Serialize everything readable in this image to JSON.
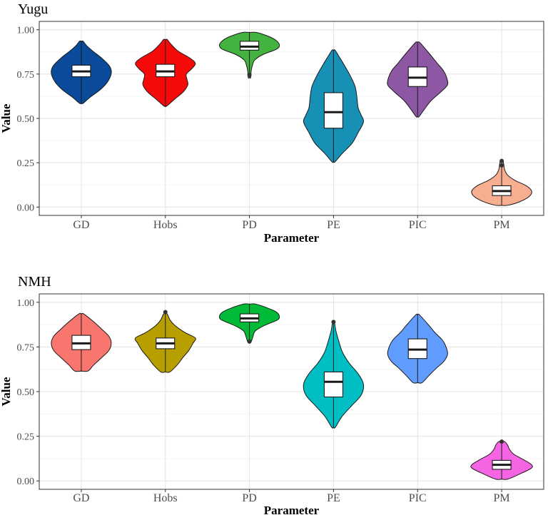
{
  "chart_data": [
    {
      "type": "violin",
      "title": "Yugu",
      "xlabel": "Parameter",
      "ylabel": "Value",
      "ylim": [
        0,
        1
      ],
      "yticks": [
        "0.00",
        "0.25",
        "0.50",
        "0.75",
        "1.00"
      ],
      "grid": true,
      "series": [
        {
          "name": "GD",
          "color": "#0a4a9a",
          "min": 0.585,
          "max": 0.935,
          "q1": 0.735,
          "median": 0.765,
          "q3": 0.8,
          "outliers": [],
          "profile": [
            [
              0.585,
              0.06
            ],
            [
              0.62,
              0.3
            ],
            [
              0.66,
              0.62
            ],
            [
              0.7,
              0.85
            ],
            [
              0.74,
              0.98
            ],
            [
              0.77,
              1.0
            ],
            [
              0.8,
              0.92
            ],
            [
              0.84,
              0.68
            ],
            [
              0.88,
              0.38
            ],
            [
              0.91,
              0.18
            ],
            [
              0.935,
              0.06
            ]
          ]
        },
        {
          "name": "Hobs",
          "color": "#f50a0a",
          "min": 0.57,
          "max": 0.945,
          "q1": 0.735,
          "median": 0.765,
          "q3": 0.805,
          "outliers": [],
          "profile": [
            [
              0.57,
              0.05
            ],
            [
              0.61,
              0.32
            ],
            [
              0.65,
              0.6
            ],
            [
              0.69,
              0.75
            ],
            [
              0.72,
              0.72
            ],
            [
              0.75,
              0.7
            ],
            [
              0.78,
              0.88
            ],
            [
              0.81,
              1.0
            ],
            [
              0.84,
              0.82
            ],
            [
              0.88,
              0.42
            ],
            [
              0.92,
              0.18
            ],
            [
              0.945,
              0.06
            ]
          ]
        },
        {
          "name": "PD",
          "color": "#43b23e",
          "min": 0.73,
          "max": 0.985,
          "q1": 0.885,
          "median": 0.905,
          "q3": 0.935,
          "outliers": [
            0.745
          ],
          "profile": [
            [
              0.73,
              0.04
            ],
            [
              0.77,
              0.06
            ],
            [
              0.8,
              0.1
            ],
            [
              0.83,
              0.18
            ],
            [
              0.86,
              0.45
            ],
            [
              0.89,
              0.9
            ],
            [
              0.91,
              1.0
            ],
            [
              0.93,
              0.95
            ],
            [
              0.95,
              0.8
            ],
            [
              0.97,
              0.52
            ],
            [
              0.985,
              0.22
            ]
          ]
        },
        {
          "name": "PE",
          "color": "#1690b5",
          "min": 0.255,
          "max": 0.885,
          "q1": 0.445,
          "median": 0.535,
          "q3": 0.645,
          "outliers": [],
          "profile": [
            [
              0.255,
              0.05
            ],
            [
              0.3,
              0.28
            ],
            [
              0.36,
              0.62
            ],
            [
              0.42,
              0.82
            ],
            [
              0.48,
              1.0
            ],
            [
              0.52,
              0.92
            ],
            [
              0.56,
              0.82
            ],
            [
              0.62,
              0.78
            ],
            [
              0.68,
              0.72
            ],
            [
              0.74,
              0.56
            ],
            [
              0.8,
              0.36
            ],
            [
              0.85,
              0.18
            ],
            [
              0.885,
              0.05
            ]
          ]
        },
        {
          "name": "PIC",
          "color": "#8e57a4",
          "min": 0.51,
          "max": 0.93,
          "q1": 0.68,
          "median": 0.73,
          "q3": 0.79,
          "outliers": [],
          "profile": [
            [
              0.51,
              0.05
            ],
            [
              0.55,
              0.22
            ],
            [
              0.6,
              0.45
            ],
            [
              0.65,
              0.78
            ],
            [
              0.69,
              1.0
            ],
            [
              0.73,
              0.97
            ],
            [
              0.77,
              0.86
            ],
            [
              0.81,
              0.66
            ],
            [
              0.86,
              0.42
            ],
            [
              0.9,
              0.22
            ],
            [
              0.93,
              0.06
            ]
          ]
        },
        {
          "name": "PM",
          "color": "#f7ae91",
          "min": 0.01,
          "max": 0.265,
          "q1": 0.065,
          "median": 0.09,
          "q3": 0.12,
          "outliers": [
            0.235,
            0.26
          ],
          "profile": [
            [
              0.01,
              0.2
            ],
            [
              0.03,
              0.6
            ],
            [
              0.06,
              0.92
            ],
            [
              0.09,
              1.0
            ],
            [
              0.12,
              0.82
            ],
            [
              0.15,
              0.45
            ],
            [
              0.18,
              0.2
            ],
            [
              0.21,
              0.1
            ],
            [
              0.24,
              0.07
            ],
            [
              0.265,
              0.04
            ]
          ]
        }
      ]
    },
    {
      "type": "violin",
      "title": "NMH",
      "xlabel": "Parameter",
      "ylabel": "Value",
      "ylim": [
        0,
        1
      ],
      "yticks": [
        "0.00",
        "0.25",
        "0.50",
        "0.75",
        "1.00"
      ],
      "grid": true,
      "series": [
        {
          "name": "GD",
          "color": "#f8766d",
          "min": 0.615,
          "max": 0.935,
          "q1": 0.735,
          "median": 0.77,
          "q3": 0.815,
          "outliers": [],
          "profile": [
            [
              0.615,
              0.22
            ],
            [
              0.65,
              0.42
            ],
            [
              0.69,
              0.68
            ],
            [
              0.73,
              0.92
            ],
            [
              0.77,
              1.0
            ],
            [
              0.81,
              0.92
            ],
            [
              0.85,
              0.68
            ],
            [
              0.89,
              0.42
            ],
            [
              0.935,
              0.08
            ]
          ]
        },
        {
          "name": "Hobs",
          "color": "#b79f00",
          "min": 0.61,
          "max": 0.945,
          "q1": 0.74,
          "median": 0.77,
          "q3": 0.8,
          "outliers": [
            0.945
          ],
          "profile": [
            [
              0.61,
              0.15
            ],
            [
              0.65,
              0.4
            ],
            [
              0.69,
              0.58
            ],
            [
              0.73,
              0.78
            ],
            [
              0.77,
              0.92
            ],
            [
              0.8,
              1.0
            ],
            [
              0.83,
              0.66
            ],
            [
              0.87,
              0.32
            ],
            [
              0.9,
              0.16
            ],
            [
              0.935,
              0.06
            ]
          ]
        },
        {
          "name": "PD",
          "color": "#00ba38",
          "min": 0.78,
          "max": 0.99,
          "q1": 0.89,
          "median": 0.91,
          "q3": 0.935,
          "outliers": [
            0.78
          ],
          "profile": [
            [
              0.78,
              0.06
            ],
            [
              0.81,
              0.12
            ],
            [
              0.84,
              0.2
            ],
            [
              0.87,
              0.5
            ],
            [
              0.9,
              0.92
            ],
            [
              0.92,
              1.0
            ],
            [
              0.945,
              0.9
            ],
            [
              0.965,
              0.65
            ],
            [
              0.99,
              0.2
            ]
          ]
        },
        {
          "name": "PE",
          "color": "#00bfc4",
          "min": 0.3,
          "max": 0.89,
          "q1": 0.47,
          "median": 0.555,
          "q3": 0.61,
          "outliers": [
            0.89
          ],
          "profile": [
            [
              0.3,
              0.06
            ],
            [
              0.36,
              0.28
            ],
            [
              0.42,
              0.6
            ],
            [
              0.48,
              0.92
            ],
            [
              0.54,
              1.0
            ],
            [
              0.6,
              0.82
            ],
            [
              0.66,
              0.52
            ],
            [
              0.72,
              0.3
            ],
            [
              0.78,
              0.18
            ],
            [
              0.84,
              0.08
            ],
            [
              0.89,
              0.03
            ]
          ]
        },
        {
          "name": "PIC",
          "color": "#619cff",
          "min": 0.55,
          "max": 0.93,
          "q1": 0.685,
          "median": 0.735,
          "q3": 0.795,
          "outliers": [],
          "profile": [
            [
              0.55,
              0.15
            ],
            [
              0.59,
              0.38
            ],
            [
              0.63,
              0.62
            ],
            [
              0.67,
              0.88
            ],
            [
              0.71,
              1.0
            ],
            [
              0.75,
              0.95
            ],
            [
              0.79,
              0.82
            ],
            [
              0.83,
              0.58
            ],
            [
              0.87,
              0.38
            ],
            [
              0.93,
              0.06
            ]
          ]
        },
        {
          "name": "PM",
          "color": "#f564e3",
          "min": 0.01,
          "max": 0.22,
          "q1": 0.065,
          "median": 0.09,
          "q3": 0.115,
          "outliers": [
            0.22
          ],
          "profile": [
            [
              0.01,
              0.2
            ],
            [
              0.04,
              0.62
            ],
            [
              0.07,
              0.98
            ],
            [
              0.09,
              1.0
            ],
            [
              0.12,
              0.72
            ],
            [
              0.15,
              0.4
            ],
            [
              0.18,
              0.25
            ],
            [
              0.2,
              0.2
            ],
            [
              0.22,
              0.1
            ]
          ]
        }
      ]
    }
  ]
}
